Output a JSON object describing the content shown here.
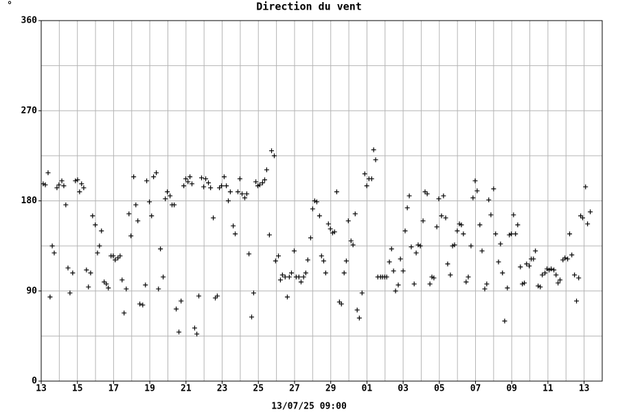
{
  "chart_data": {
    "type": "scatter",
    "title": "Direction du vent",
    "y_label": "°",
    "x_label": "13/07/25 09:00",
    "color": "#000000",
    "grid": true,
    "xlim": [
      0,
      31
    ],
    "ylim": [
      0,
      360
    ],
    "xticks": [
      {
        "value": 0,
        "label": "13"
      },
      {
        "value": 2,
        "label": "15"
      },
      {
        "value": 4,
        "label": "17"
      },
      {
        "value": 6,
        "label": "19"
      },
      {
        "value": 8,
        "label": "21"
      },
      {
        "value": 10,
        "label": "23"
      },
      {
        "value": 12,
        "label": "25"
      },
      {
        "value": 14,
        "label": "27"
      },
      {
        "value": 16,
        "label": "29"
      },
      {
        "value": 18,
        "label": "01"
      },
      {
        "value": 20,
        "label": "03"
      },
      {
        "value": 22,
        "label": "05"
      },
      {
        "value": 24,
        "label": "07"
      },
      {
        "value": 26,
        "label": "09"
      },
      {
        "value": 28,
        "label": "11"
      },
      {
        "value": 30,
        "label": "13"
      }
    ],
    "xminor": [
      1,
      3,
      5,
      7,
      9,
      11,
      13,
      15,
      17,
      19,
      21,
      23,
      25,
      27,
      29
    ],
    "yticks": [
      0,
      90,
      180,
      270,
      360
    ],
    "yminor": [
      45,
      135,
      225,
      315
    ],
    "x": [
      0.11,
      0.23,
      0.38,
      0.49,
      0.61,
      0.72,
      0.87,
      0.98,
      1.14,
      1.25,
      1.36,
      1.48,
      1.59,
      1.74,
      1.89,
      2.01,
      2.12,
      2.23,
      2.35,
      2.5,
      2.61,
      2.73,
      2.84,
      2.99,
      3.11,
      3.22,
      3.33,
      3.48,
      3.6,
      3.71,
      3.86,
      3.98,
      4.09,
      4.24,
      4.36,
      4.47,
      4.58,
      4.7,
      4.85,
      4.96,
      5.11,
      5.23,
      5.34,
      5.45,
      5.61,
      5.76,
      5.83,
      5.98,
      6.1,
      6.21,
      6.36,
      6.48,
      6.59,
      6.74,
      6.86,
      6.97,
      7.12,
      7.23,
      7.35,
      7.46,
      7.61,
      7.73,
      7.88,
      7.99,
      8.11,
      8.22,
      8.33,
      8.48,
      8.6,
      8.71,
      8.86,
      8.98,
      9.09,
      9.24,
      9.36,
      9.51,
      9.62,
      9.73,
      9.85,
      9.96,
      10.11,
      10.23,
      10.34,
      10.45,
      10.61,
      10.72,
      10.87,
      10.98,
      11.1,
      11.25,
      11.36,
      11.48,
      11.63,
      11.74,
      11.86,
      11.97,
      12.08,
      12.23,
      12.35,
      12.46,
      12.61,
      12.73,
      12.88,
      12.95,
      13.11,
      13.22,
      13.33,
      13.48,
      13.6,
      13.71,
      13.83,
      13.98,
      14.09,
      14.24,
      14.36,
      14.5,
      14.62,
      14.73,
      14.89,
      15,
      15.11,
      15.23,
      15.38,
      15.49,
      15.61,
      15.72,
      15.87,
      15.98,
      16.1,
      16.21,
      16.33,
      16.48,
      16.59,
      16.74,
      16.86,
      16.97,
      17.12,
      17.23,
      17.35,
      17.46,
      17.58,
      17.73,
      17.88,
      17.99,
      18.11,
      18.26,
      18.37,
      18.48,
      18.6,
      18.75,
      18.86,
      18.98,
      19.09,
      19.24,
      19.36,
      19.47,
      19.58,
      19.73,
      19.85,
      20,
      20.11,
      20.23,
      20.34,
      20.45,
      20.61,
      20.72,
      20.83,
      20.95,
      21.1,
      21.21,
      21.33,
      21.48,
      21.59,
      21.7,
      21.86,
      21.97,
      22.12,
      22.23,
      22.35,
      22.46,
      22.61,
      22.73,
      22.84,
      22.99,
      23.11,
      23.22,
      23.33,
      23.48,
      23.6,
      23.75,
      23.86,
      23.98,
      24.09,
      24.24,
      24.36,
      24.51,
      24.62,
      24.73,
      24.85,
      25,
      25.11,
      25.27,
      25.38,
      25.49,
      25.61,
      25.76,
      25.87,
      25.98,
      26.1,
      26.21,
      26.33,
      26.48,
      26.59,
      26.7,
      26.82,
      26.97,
      27.08,
      27.2,
      27.31,
      27.46,
      27.58,
      27.69,
      27.84,
      27.95,
      28.07,
      28.18,
      28.33,
      28.45,
      28.56,
      28.67,
      28.83,
      28.94,
      29.09,
      29.2,
      29.32,
      29.47,
      29.58,
      29.7,
      29.81,
      29.92,
      30.08,
      30.19,
      30.34
    ],
    "values": [
      197,
      196,
      208,
      84,
      135,
      128,
      193,
      196,
      200,
      195,
      176,
      113,
      88,
      108,
      200,
      201,
      189,
      197,
      193,
      111,
      94,
      108,
      165,
      156,
      128,
      135,
      150,
      99,
      97,
      93,
      125,
      125,
      121,
      123,
      125,
      101,
      68,
      92,
      167,
      145,
      204,
      176,
      160,
      77,
      76,
      96,
      200,
      179,
      165,
      204,
      208,
      92,
      132,
      104,
      182,
      189,
      185,
      176,
      176,
      72,
      49,
      80,
      195,
      202,
      199,
      204,
      197,
      53,
      47,
      85,
      203,
      194,
      202,
      198,
      193,
      163,
      83,
      85,
      193,
      195,
      204,
      195,
      180,
      189,
      155,
      147,
      189,
      202,
      187,
      183,
      187,
      127,
      64,
      88,
      199,
      195,
      196,
      198,
      201,
      211,
      146,
      230,
      225,
      120,
      125,
      101,
      106,
      104,
      84,
      104,
      108,
      130,
      104,
      104,
      99,
      104,
      108,
      121,
      143,
      172,
      180,
      179,
      165,
      125,
      120,
      108,
      157,
      152,
      148,
      149,
      189,
      79,
      77,
      108,
      120,
      160,
      140,
      136,
      167,
      71,
      63,
      88,
      207,
      195,
      202,
      202,
      231,
      221,
      104,
      104,
      104,
      104,
      104,
      119,
      132,
      110,
      90,
      96,
      122,
      110,
      150,
      173,
      185,
      134,
      97,
      128,
      136,
      135,
      160,
      189,
      187,
      97,
      104,
      103,
      154,
      182,
      165,
      185,
      163,
      117,
      106,
      135,
      136,
      150,
      157,
      156,
      147,
      99,
      104,
      135,
      183,
      200,
      190,
      156,
      130,
      92,
      97,
      181,
      166,
      192,
      147,
      119,
      137,
      108,
      60,
      93,
      146,
      147,
      166,
      147,
      156,
      114,
      97,
      98,
      117,
      115,
      122,
      122,
      130,
      95,
      94,
      106,
      108,
      112,
      111,
      112,
      111,
      106,
      98,
      101,
      121,
      123,
      122,
      147,
      126,
      106,
      80,
      103,
      165,
      163,
      194,
      157,
      169
    ]
  }
}
